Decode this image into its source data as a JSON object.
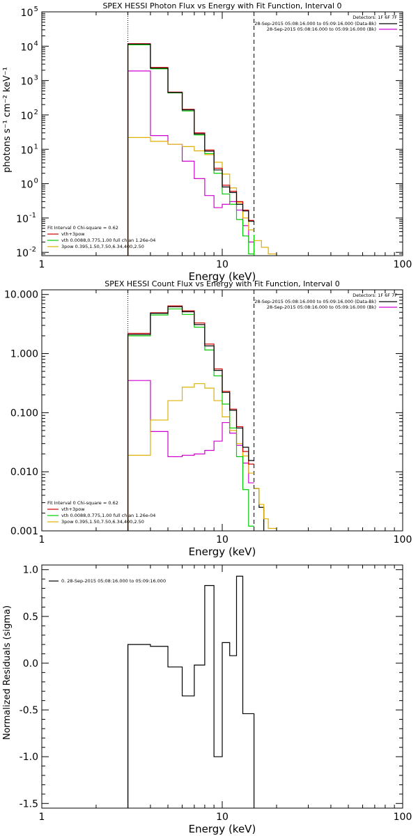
{
  "chart_data": [
    {
      "type": "line",
      "title": "SPEX HESSI Photon Flux vs Energy with Fit Function, Interval 0",
      "xlabel": "Energy (keV)",
      "ylabel": "photons s⁻¹ cm⁻² keV⁻¹",
      "xscale": "log",
      "yscale": "log",
      "xlim": [
        1,
        100
      ],
      "ylim": [
        0.008,
        100000
      ],
      "xticks": [
        {
          "value": 1,
          "label": "1"
        },
        {
          "value": 10,
          "label": "10"
        },
        {
          "value": 100,
          "label": "100"
        }
      ],
      "yticks": [
        {
          "value": 0.01,
          "base": "10",
          "exp": "-2"
        },
        {
          "value": 0.1,
          "base": "10",
          "exp": "-1"
        },
        {
          "value": 1,
          "base": "10",
          "exp": "0"
        },
        {
          "value": 10,
          "base": "10",
          "exp": "1"
        },
        {
          "value": 100,
          "base": "10",
          "exp": "2"
        },
        {
          "value": 1000,
          "base": "10",
          "exp": "3"
        },
        {
          "value": 10000,
          "base": "10",
          "exp": "4"
        },
        {
          "value": 100000,
          "base": "10",
          "exp": "5"
        }
      ],
      "vlines": [
        {
          "x": 3,
          "style": "dotted"
        },
        {
          "x": 15,
          "style": "dashed"
        }
      ],
      "legend_topright": {
        "detectors": "Detectors: 1F 6F 7F",
        "entries": [
          {
            "text": "28-Sep-2015 05:08:16.000 to 05:09:16.000 (Data-Bk)",
            "color": "#000000"
          },
          {
            "text": "28-Sep-2015 05:08:16.000 to 05:09:16.000 (Bk)",
            "color": "#d000d0"
          }
        ]
      },
      "legend_bottomleft": {
        "header": "Fit Interval 0   Chi-square = 0.62",
        "entries": [
          {
            "text": "vth+3pow",
            "color": "#d00000"
          },
          {
            "text": "vth 0.0088,0.775,1.00  full chian 1.26e-04",
            "color": "#00cc00"
          },
          {
            "text": "3pow 0.395,1.50,7.50,6.34,400,2.50",
            "color": "#e0b000"
          }
        ]
      },
      "edges": [
        3,
        4,
        5,
        6,
        7,
        8,
        9,
        10,
        11,
        12,
        13,
        14,
        15
      ],
      "series": [
        {
          "name": "Data-Bk",
          "color": "#000000",
          "values": [
            11500,
            2300,
            450,
            140,
            28,
            8.8,
            2.5,
            0.8,
            0.55,
            0.25,
            0.16,
            0.08
          ]
        },
        {
          "name": "vth+3pow",
          "color": "#d00000",
          "values": [
            11800,
            2400,
            460,
            145,
            30,
            9.5,
            2.8,
            0.9,
            0.6,
            0.3,
            0.17,
            0.085
          ]
        },
        {
          "name": "vth",
          "color": "#00cc00",
          "values": [
            11000,
            2200,
            440,
            130,
            26,
            7.5,
            2.0,
            0.5,
            0.25,
            0.09,
            0.03,
            0.009
          ]
        },
        {
          "name": "3pow",
          "color": "#e0b000",
          "values": [
            22,
            17,
            14,
            12,
            9,
            7,
            4.2,
            1.9,
            0.75,
            0.28,
            0.1,
            0.045
          ]
        },
        {
          "name": "Bk",
          "color": "#d000d0",
          "values": [
            1900,
            25,
            14,
            4.5,
            1.4,
            0.45,
            0.2,
            0.25,
            0.3,
            0.17,
            0.06,
            0.02
          ]
        }
      ],
      "tail": [
        {
          "color": "#00cc00",
          "edges": [
            15
          ],
          "values": []
        },
        {
          "color": "#e0b000",
          "edges": [
            15,
            16.5,
            18,
            20
          ],
          "values": [
            0.022,
            0.014,
            0.009
          ]
        }
      ]
    },
    {
      "type": "line",
      "title": "SPEX HESSI Count Flux vs Energy with Fit Function, Interval 0",
      "xlabel": "Energy (keV)",
      "ylabel": "",
      "xscale": "log",
      "yscale": "log",
      "xlim": [
        1,
        100
      ],
      "ylim": [
        0.001,
        12
      ],
      "xticks": [
        {
          "value": 1,
          "label": "1"
        },
        {
          "value": 10,
          "label": "10"
        },
        {
          "value": 100,
          "label": "100"
        }
      ],
      "yticks": [
        {
          "value": 0.001,
          "label": "0.001"
        },
        {
          "value": 0.01,
          "label": "0.010"
        },
        {
          "value": 0.1,
          "label": "0.100"
        },
        {
          "value": 1,
          "label": "1.000"
        },
        {
          "value": 10,
          "label": "10.000"
        }
      ],
      "vlines": [
        {
          "x": 3,
          "style": "dotted"
        },
        {
          "x": 15,
          "style": "dashed"
        }
      ],
      "legend_topright": {
        "detectors": "Detectors: 1F 6F 7F",
        "entries": [
          {
            "text": "28-Sep-2015 05:08:16.000 to 05:09:16.000 (Data-Bk)",
            "color": "#000000"
          },
          {
            "text": "28-Sep-2015 05:08:16.000 to 05:09:16.000 (Bk)",
            "color": "#d000d0"
          }
        ]
      },
      "legend_bottomleft": {
        "header": "Fit Interval 0   Chi-square = 0.62",
        "entries": [
          {
            "text": "vth+3pow",
            "color": "#d00000"
          },
          {
            "text": "vth 0.0088,0.775,1.00  full chian 1.26e-04",
            "color": "#00cc00"
          },
          {
            "text": "3pow 0.395,1.50,7.50,6.34,400,2.50",
            "color": "#e0b000"
          }
        ]
      },
      "edges": [
        3,
        4,
        5,
        6,
        7,
        8,
        9,
        10,
        11,
        12,
        13,
        14,
        15
      ],
      "series": [
        {
          "name": "Data-Bk",
          "color": "#000000",
          "values": [
            2.1,
            4.8,
            6.2,
            5.1,
            3.1,
            1.35,
            0.52,
            0.22,
            0.11,
            0.055,
            0.026,
            0.0155
          ]
        },
        {
          "name": "vth+3pow",
          "color": "#d00000",
          "values": [
            2.2,
            4.9,
            6.4,
            5.3,
            3.3,
            1.45,
            0.55,
            0.23,
            0.115,
            0.058,
            0.022,
            0.0135
          ]
        },
        {
          "name": "vth",
          "color": "#00cc00",
          "values": [
            2.0,
            4.5,
            5.7,
            4.6,
            2.8,
            1.15,
            0.42,
            0.14,
            0.055,
            0.018,
            0.005,
            0.0012
          ]
        },
        {
          "name": "3pow",
          "color": "#e0b000",
          "values": [
            0.019,
            0.075,
            0.16,
            0.27,
            0.31,
            0.26,
            0.16,
            0.085,
            0.05,
            0.03,
            0.0185,
            0.0095
          ]
        },
        {
          "name": "Bk",
          "color": "#d000d0",
          "values": [
            0.35,
            0.048,
            0.018,
            0.019,
            0.02,
            0.023,
            0.033,
            0.068,
            0.045,
            0.028,
            0.014,
            0.0065
          ]
        }
      ],
      "tail": [
        {
          "color": "#000000",
          "edges": [
            15,
            16,
            17
          ],
          "values": [
            0.0052,
            0.0025
          ]
        },
        {
          "color": "#e0b000",
          "edges": [
            15,
            16,
            17,
            18,
            20
          ],
          "values": [
            0.0052,
            0.0028,
            0.0016,
            0.0011
          ]
        }
      ]
    },
    {
      "type": "line",
      "title": "",
      "xlabel": "Energy (keV)",
      "ylabel": "Normalized Residuals (sigma)",
      "xscale": "log",
      "yscale": "linear",
      "xlim": [
        1,
        100
      ],
      "ylim": [
        -1.55,
        1.05
      ],
      "xticks": [
        {
          "value": 1,
          "label": "1"
        },
        {
          "value": 10,
          "label": "10"
        },
        {
          "value": 100,
          "label": "100"
        }
      ],
      "yticks": [
        {
          "value": -1.5,
          "label": "-1.5"
        },
        {
          "value": -1.0,
          "label": "-1.0"
        },
        {
          "value": -0.5,
          "label": "-0.5"
        },
        {
          "value": 0.0,
          "label": "0.0"
        },
        {
          "value": 0.5,
          "label": "0.5"
        },
        {
          "value": 1.0,
          "label": "1.0"
        }
      ],
      "legend_topleft": {
        "entries": [
          {
            "text": "0. 28-Sep-2015 05:08:16.000 to 05:09:16.000",
            "color": "#000000"
          }
        ]
      },
      "edges": [
        3,
        4,
        5,
        6,
        7,
        8,
        9,
        10,
        11,
        12,
        13,
        14,
        15
      ],
      "series": [
        {
          "name": "residuals",
          "color": "#000000",
          "values": [
            0.2,
            0.18,
            -0.04,
            -0.35,
            -0.02,
            0.83,
            -1.0,
            0.22,
            0.08,
            0.93,
            -0.54,
            -0.54
          ]
        }
      ]
    }
  ]
}
